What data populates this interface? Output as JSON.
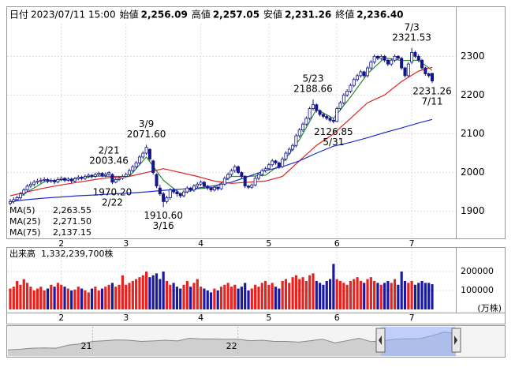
{
  "chart_data": {
    "type": "candlestick",
    "header": [
      {
        "label": "日付",
        "value": "2023/07/11 15:00",
        "color": "#000000"
      },
      {
        "label": "始値",
        "value": "2,256.09",
        "color": "#000000"
      },
      {
        "label": "高値",
        "value": "2,257.05",
        "color": "#e01818"
      },
      {
        "label": "安値",
        "value": "2,231.26",
        "color": "#128a12"
      },
      {
        "label": "終値",
        "value": "2,236.40",
        "color": "#000000"
      }
    ],
    "up_color": "#ffffff",
    "down_color": "#14148c",
    "edge_color": "#14148c",
    "open": [
      1920,
      1925,
      1930,
      1935,
      1945,
      1955,
      1965,
      1970,
      1975,
      1978,
      1980,
      1982,
      1978,
      1980,
      1976,
      1982,
      1985,
      1980,
      1983,
      1978,
      1984,
      1988,
      1985,
      1990,
      1993,
      1990,
      1995,
      1998,
      1992,
      1996,
      1995,
      1975,
      1982,
      1985,
      1990,
      1995,
      2005,
      2015,
      2025,
      2040,
      2050,
      2060,
      2030,
      1995,
      1960,
      1945,
      1925,
      1935,
      1955,
      1950,
      1945,
      1940,
      1950,
      1960,
      1955,
      1965,
      1970,
      1975,
      1965,
      1960,
      1955,
      1962,
      1958,
      1970,
      1985,
      1995,
      2005,
      2015,
      2000,
      1990,
      1965,
      1962,
      1968,
      1985,
      1995,
      2005,
      2010,
      2020,
      2030,
      2025,
      2015,
      2035,
      2050,
      2060,
      2070,
      2095,
      2110,
      2125,
      2140,
      2165,
      2175,
      2160,
      2150,
      2145,
      2140,
      2135,
      2132,
      2165,
      2180,
      2200,
      2210,
      2225,
      2240,
      2250,
      2260,
      2250,
      2270,
      2285,
      2300,
      2295,
      2300,
      2290,
      2280,
      2290,
      2300,
      2295,
      2270,
      2250,
      2285,
      2310,
      2300,
      2290,
      2270,
      2255,
      2256.09
    ],
    "high": [
      1932,
      1936,
      1940,
      1950,
      1960,
      1970,
      1976,
      1981,
      1984,
      1986,
      1988,
      1986,
      1985,
      1984,
      1988,
      1990,
      1988,
      1988,
      1987,
      1989,
      1993,
      1992,
      1995,
      1998,
      1996,
      2000,
      2002,
      2001,
      2000,
      2003.46,
      1998,
      1987,
      1990,
      1995,
      2000,
      2010,
      2020,
      2030,
      2045,
      2055,
      2071.6,
      2062,
      2033,
      1998,
      1968,
      1950,
      1940,
      1960,
      1960,
      1955,
      1948,
      1955,
      1965,
      1963,
      1970,
      1975,
      1980,
      1978,
      1968,
      1963,
      1966,
      1965,
      1975,
      1990,
      2000,
      2010,
      2020,
      2018,
      2003,
      1993,
      1968,
      1972,
      1990,
      2000,
      2010,
      2015,
      2025,
      2035,
      2033,
      2028,
      2040,
      2055,
      2065,
      2075,
      2100,
      2115,
      2130,
      2145,
      2170,
      2188.66,
      2178,
      2163,
      2155,
      2150,
      2145,
      2140,
      2170,
      2185,
      2205,
      2215,
      2230,
      2245,
      2255,
      2265,
      2263,
      2275,
      2290,
      2305,
      2303,
      2305,
      2303,
      2293,
      2295,
      2305,
      2303,
      2298,
      2273,
      2285,
      2321.53,
      2315,
      2305,
      2293,
      2273,
      2258,
      2257.05
    ],
    "low": [
      1915,
      1920,
      1926,
      1930,
      1940,
      1950,
      1960,
      1964,
      1970,
      1972,
      1975,
      1972,
      1973,
      1970,
      1972,
      1978,
      1975,
      1976,
      1972,
      1974,
      1980,
      1980,
      1981,
      1986,
      1985,
      1986,
      1990,
      1988,
      1988,
      1992,
      1970.2,
      1972,
      1978,
      1981,
      1986,
      1991,
      2000,
      2010,
      2020,
      2035,
      2045,
      2030,
      1995,
      1960,
      1940,
      1910.6,
      1920,
      1930,
      1945,
      1938,
      1934,
      1936,
      1946,
      1950,
      1950,
      1960,
      1965,
      1960,
      1955,
      1950,
      1951,
      1953,
      1955,
      1966,
      1980,
      1990,
      2000,
      1996,
      1985,
      1960,
      1957,
      1958,
      1964,
      1980,
      1990,
      2000,
      2005,
      2015,
      2020,
      2010,
      2012,
      2030,
      2045,
      2055,
      2065,
      2090,
      2105,
      2120,
      2135,
      2160,
      2155,
      2145,
      2140,
      2135,
      2130,
      2126.85,
      2130,
      2160,
      2175,
      2195,
      2205,
      2220,
      2235,
      2245,
      2245,
      2245,
      2265,
      2280,
      2290,
      2290,
      2285,
      2275,
      2275,
      2285,
      2290,
      2265,
      2245,
      2245,
      2280,
      2295,
      2285,
      2265,
      2250,
      2245,
      2231.26
    ],
    "close": [
      1925,
      1930,
      1935,
      1945,
      1955,
      1965,
      1970,
      1975,
      1978,
      1980,
      1982,
      1978,
      1980,
      1976,
      1982,
      1985,
      1980,
      1983,
      1978,
      1984,
      1988,
      1985,
      1990,
      1993,
      1990,
      1995,
      1998,
      1992,
      1996,
      2000,
      1975,
      1982,
      1985,
      1990,
      1995,
      2005,
      2015,
      2025,
      2040,
      2050,
      2065,
      2035,
      2000,
      1965,
      1945,
      1925,
      1935,
      1955,
      1950,
      1945,
      1940,
      1950,
      1960,
      1955,
      1965,
      1970,
      1975,
      1965,
      1960,
      1955,
      1962,
      1958,
      1970,
      1985,
      1995,
      2005,
      2015,
      2000,
      1990,
      1965,
      1962,
      1968,
      1985,
      1995,
      2005,
      2010,
      2020,
      2030,
      2025,
      2015,
      2035,
      2050,
      2060,
      2070,
      2095,
      2110,
      2125,
      2140,
      2165,
      2175,
      2160,
      2150,
      2145,
      2140,
      2135,
      2132,
      2165,
      2180,
      2200,
      2210,
      2225,
      2240,
      2250,
      2260,
      2250,
      2270,
      2285,
      2300,
      2295,
      2300,
      2290,
      2280,
      2290,
      2300,
      2295,
      2270,
      2250,
      2280,
      2310,
      2300,
      2290,
      2270,
      2255,
      2250,
      2236.4
    ],
    "ylim": [
      1830,
      2425
    ],
    "yticks": [
      1900,
      2000,
      2100,
      2200,
      2300
    ],
    "xticks": [
      {
        "value": 15,
        "label": "2"
      },
      {
        "value": 34,
        "label": "3"
      },
      {
        "value": 56,
        "label": "4"
      },
      {
        "value": 76,
        "label": "5"
      },
      {
        "value": 96,
        "label": "6"
      },
      {
        "value": 118,
        "label": "7"
      }
    ],
    "grid": true,
    "annotations": [
      {
        "at": 29,
        "side": "above",
        "date": "2/21",
        "text": "2003.46"
      },
      {
        "at": 30,
        "side": "below",
        "date": "2/22",
        "text": "1970.20"
      },
      {
        "at": 40,
        "side": "above",
        "date": "3/9",
        "text": "2071.60"
      },
      {
        "at": 45,
        "side": "below",
        "date": "3/16",
        "text": "1910.60"
      },
      {
        "at": 89,
        "side": "above",
        "date": "5/23",
        "text": "2188.66"
      },
      {
        "at": 95,
        "side": "below",
        "date": "5/31",
        "text": "2126.85"
      },
      {
        "at": 118,
        "side": "above",
        "date": "7/3",
        "text": "2321.53"
      },
      {
        "at": 124,
        "side": "below",
        "date": "7/11",
        "text": "2231.26"
      }
    ],
    "series": [
      {
        "name": "MA(5)",
        "color": "#2e8b2e",
        "value_label": "2,263.55",
        "x": [
          0,
          5,
          10,
          15,
          20,
          25,
          30,
          35,
          40,
          45,
          50,
          55,
          60,
          65,
          70,
          75,
          80,
          85,
          90,
          95,
          100,
          105,
          110,
          115,
          120,
          124
        ],
        "values": [
          1920,
          1950,
          1976,
          1981,
          1984,
          1991,
          1990,
          1990,
          2040,
          1980,
          1945,
          1958,
          1962,
          1990,
          1990,
          1993,
          2025,
          2085,
          2163,
          2140,
          2195,
          2255,
          2296,
          2289,
          2290,
          2263.55
        ]
      },
      {
        "name": "MA(25)",
        "color": "#e02020",
        "value_label": "2,271.50",
        "x": [
          0,
          5,
          10,
          15,
          20,
          25,
          30,
          35,
          40,
          45,
          50,
          55,
          60,
          65,
          70,
          75,
          80,
          85,
          90,
          95,
          100,
          105,
          110,
          115,
          120,
          124
        ],
        "values": [
          1940,
          1950,
          1960,
          1968,
          1975,
          1982,
          1988,
          1990,
          2000,
          2010,
          2000,
          1990,
          1978,
          1972,
          1975,
          1978,
          1990,
          2030,
          2070,
          2100,
          2140,
          2180,
          2200,
          2235,
          2262,
          2271.5
        ]
      },
      {
        "name": "MA(75)",
        "color": "#1f2fd0",
        "value_label": "2,137.15",
        "x": [
          0,
          5,
          10,
          15,
          20,
          25,
          30,
          35,
          40,
          45,
          50,
          55,
          60,
          65,
          70,
          75,
          80,
          85,
          90,
          95,
          100,
          105,
          110,
          115,
          120,
          124
        ],
        "values": [
          1925,
          1930,
          1934,
          1937,
          1940,
          1942,
          1945,
          1947,
          1950,
          1954,
          1957,
          1960,
          1966,
          1975,
          1990,
          2005,
          2015,
          2030,
          2050,
          2068,
          2078,
          2090,
          2103,
          2115,
          2128,
          2137.15
        ]
      }
    ],
    "volume": {
      "title": "出来高",
      "total": "1,332,239,700株",
      "unit": "(万株)",
      "up_color": "#e8231f",
      "down_color": "#1a1aa0",
      "values": [
        110000,
        120000,
        150000,
        130000,
        160000,
        140000,
        120000,
        100000,
        110000,
        120000,
        100000,
        110000,
        130000,
        120000,
        140000,
        130000,
        120000,
        110000,
        100000,
        105000,
        120000,
        110000,
        100000,
        90000,
        110000,
        120000,
        100000,
        110000,
        120000,
        130000,
        140000,
        120000,
        130000,
        180000,
        130000,
        140000,
        150000,
        160000,
        170000,
        180000,
        200000,
        170000,
        180000,
        190000,
        160000,
        200000,
        150000,
        130000,
        140000,
        120000,
        110000,
        130000,
        150000,
        120000,
        140000,
        160000,
        120000,
        110000,
        100000,
        90000,
        110000,
        100000,
        120000,
        130000,
        140000,
        120000,
        130000,
        110000,
        120000,
        140000,
        100000,
        110000,
        130000,
        120000,
        140000,
        150000,
        130000,
        140000,
        120000,
        110000,
        150000,
        160000,
        140000,
        170000,
        180000,
        160000,
        170000,
        150000,
        180000,
        190000,
        150000,
        140000,
        130000,
        150000,
        160000,
        240000,
        160000,
        150000,
        140000,
        130000,
        150000,
        160000,
        170000,
        150000,
        140000,
        160000,
        170000,
        150000,
        140000,
        130000,
        140000,
        150000,
        140000,
        160000,
        130000,
        200000,
        150000,
        140000,
        150000,
        130000,
        140000,
        150000,
        140000,
        140000,
        133224
      ],
      "ylim": [
        0,
        308000
      ],
      "yticks": [
        100000,
        200000
      ]
    },
    "navigator": {
      "color": "#888888",
      "values": [
        1550,
        1580,
        1620,
        1630,
        1620,
        1750,
        1800,
        1900,
        1930,
        1960,
        1950,
        1900,
        1920,
        1950,
        1920,
        2030,
        2000,
        2000,
        1990,
        1990,
        1930,
        1950,
        1900,
        1900,
        1870,
        1930,
        1990,
        1840,
        1930,
        2030,
        1890,
        1930,
        1990,
        2010,
        2010,
        2130,
        2280,
        2236
      ],
      "ylim": [
        1300,
        2500
      ],
      "xticks": [
        {
          "value": 7,
          "label": "21"
        },
        {
          "value": 19,
          "label": "22"
        }
      ]
    }
  }
}
